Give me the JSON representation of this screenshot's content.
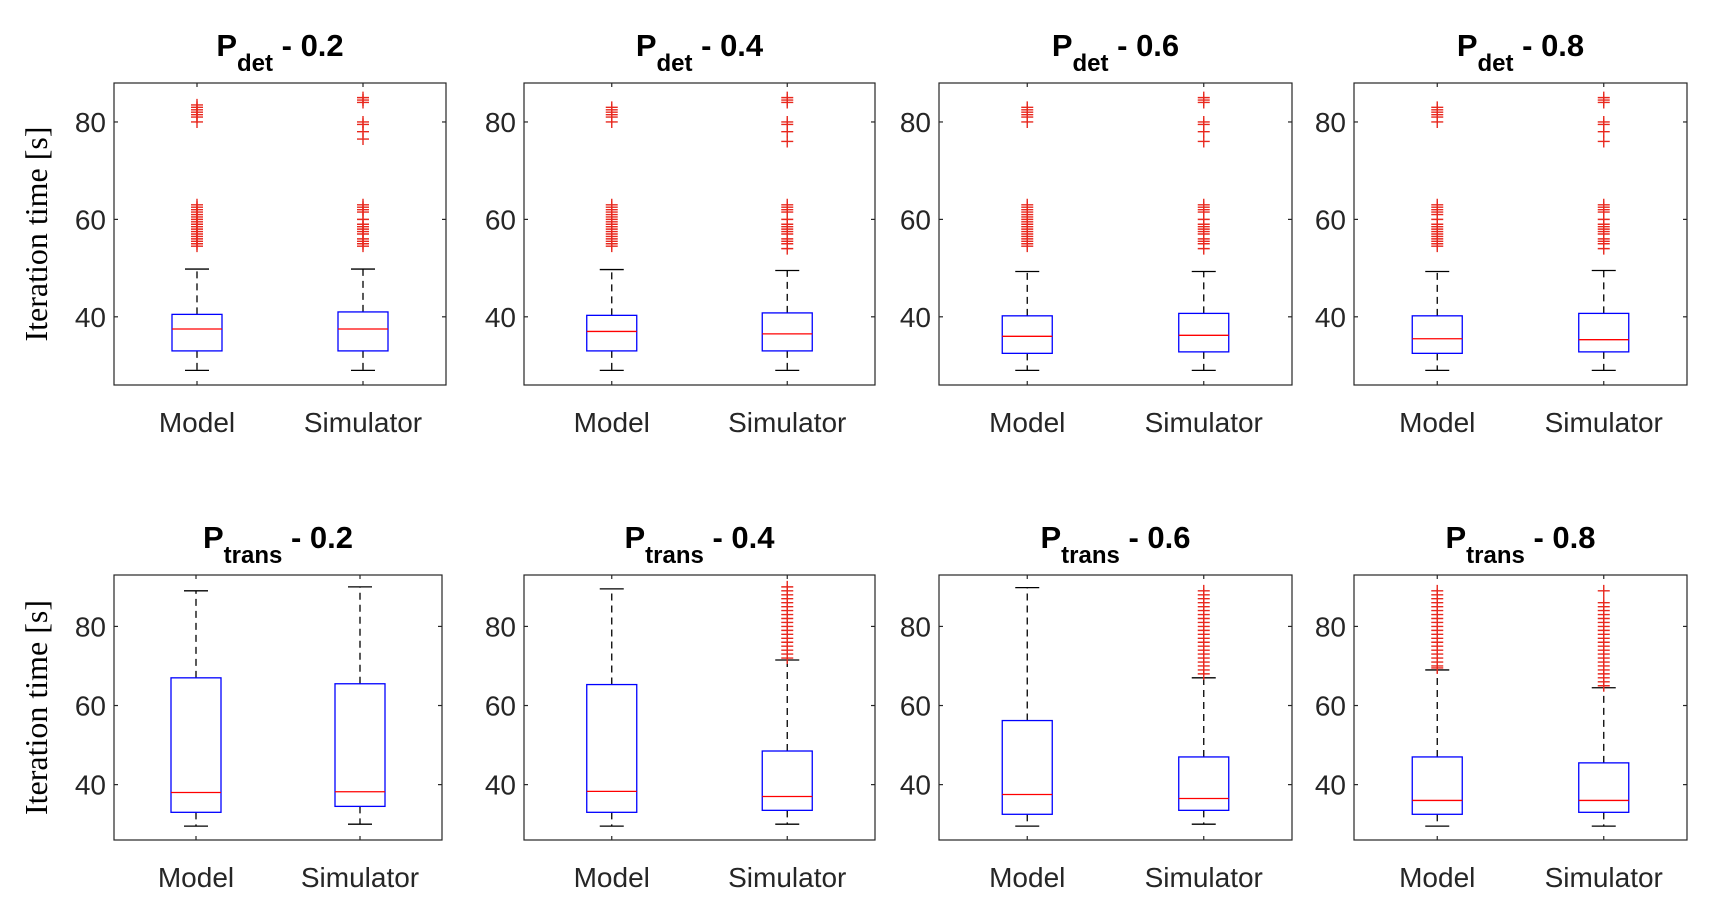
{
  "colors": {
    "box": "#0000ff",
    "median": "#ff0000",
    "outlier": "#e8281e",
    "whisker": "#000000",
    "axis": "#262626"
  },
  "chart_data": [
    {
      "type": "box",
      "title": {
        "base": "P",
        "sub": "det",
        "suffix": " - 0.2"
      },
      "ylabel": "Iteration time [s]",
      "ylim": [
        26,
        88
      ],
      "yticks": [
        40,
        60,
        80
      ],
      "categories": [
        "Model",
        "Simulator"
      ],
      "boxes": [
        {
          "name": "Model",
          "whisker_low": 29,
          "q1": 33,
          "median": 37.5,
          "q3": 40.5,
          "whisker_high": 49.8,
          "outliers": [
            54.5,
            55,
            55.5,
            56,
            56.5,
            57,
            57.5,
            58,
            58.5,
            59,
            59.5,
            60,
            60.5,
            61,
            61.5,
            62,
            62.5,
            63,
            80,
            81,
            81.5,
            82,
            82.5,
            83,
            83.5
          ]
        },
        {
          "name": "Simulator",
          "whisker_low": 29,
          "q1": 33,
          "median": 37.5,
          "q3": 41,
          "whisker_high": 49.8,
          "outliers": [
            54.5,
            55,
            55.5,
            56,
            57,
            57.5,
            58,
            58.5,
            59,
            60,
            61.5,
            62,
            62.5,
            63,
            76.5,
            78,
            79.5,
            80,
            84,
            84.5,
            85
          ]
        }
      ]
    },
    {
      "type": "box",
      "title": {
        "base": "P",
        "sub": "det",
        "suffix": " - 0.4"
      },
      "ylabel": "",
      "ylim": [
        26,
        88
      ],
      "yticks": [
        40,
        60,
        80
      ],
      "categories": [
        "Model",
        "Simulator"
      ],
      "boxes": [
        {
          "name": "Model",
          "whisker_low": 29,
          "q1": 33,
          "median": 37,
          "q3": 40.3,
          "whisker_high": 49.7,
          "outliers": [
            54.5,
            55,
            55.5,
            56,
            56.5,
            57,
            57.5,
            58,
            58.5,
            59,
            59.5,
            60,
            60.5,
            61,
            61.5,
            62,
            62.5,
            63,
            80,
            81,
            81.5,
            82,
            82.5,
            83
          ]
        },
        {
          "name": "Simulator",
          "whisker_low": 29,
          "q1": 33,
          "median": 36.5,
          "q3": 40.8,
          "whisker_high": 49.5,
          "outliers": [
            54,
            55,
            55.5,
            56,
            57,
            57.5,
            58,
            58.5,
            59,
            60,
            61.5,
            62,
            62.5,
            63,
            76,
            78,
            79.5,
            80,
            84,
            84.5,
            85
          ]
        }
      ]
    },
    {
      "type": "box",
      "title": {
        "base": "P",
        "sub": "det",
        "suffix": " - 0.6"
      },
      "ylabel": "",
      "ylim": [
        26,
        88
      ],
      "yticks": [
        40,
        60,
        80
      ],
      "categories": [
        "Model",
        "Simulator"
      ],
      "boxes": [
        {
          "name": "Model",
          "whisker_low": 29,
          "q1": 32.5,
          "median": 36,
          "q3": 40.2,
          "whisker_high": 49.3,
          "outliers": [
            54.5,
            55,
            55.5,
            56,
            56.5,
            57,
            57.5,
            58,
            58.5,
            59,
            59.5,
            60,
            60.5,
            61,
            61.5,
            62,
            62.5,
            63,
            80,
            81,
            81.5,
            82,
            82.5,
            83
          ]
        },
        {
          "name": "Simulator",
          "whisker_low": 29,
          "q1": 32.8,
          "median": 36.2,
          "q3": 40.7,
          "whisker_high": 49.3,
          "outliers": [
            54,
            55,
            55.5,
            56,
            57,
            57.5,
            58,
            58.5,
            59,
            60,
            61.5,
            62,
            62.5,
            63,
            76,
            78,
            79.5,
            80,
            84,
            84.5,
            85
          ]
        }
      ]
    },
    {
      "type": "box",
      "title": {
        "base": "P",
        "sub": "det",
        "suffix": " - 0.8"
      },
      "ylabel": "",
      "ylim": [
        26,
        88
      ],
      "yticks": [
        40,
        60,
        80
      ],
      "categories": [
        "Model",
        "Simulator"
      ],
      "boxes": [
        {
          "name": "Model",
          "whisker_low": 29,
          "q1": 32.5,
          "median": 35.5,
          "q3": 40.2,
          "whisker_high": 49.3,
          "outliers": [
            54.5,
            55,
            55.5,
            56,
            56.5,
            57,
            57.5,
            58,
            58.5,
            59,
            60,
            61,
            61.5,
            62,
            62.5,
            63,
            80,
            81,
            81.5,
            82,
            82.5,
            83
          ]
        },
        {
          "name": "Simulator",
          "whisker_low": 29,
          "q1": 32.8,
          "median": 35.3,
          "q3": 40.7,
          "whisker_high": 49.5,
          "outliers": [
            54,
            55,
            55.5,
            56,
            57,
            57.5,
            58,
            58.5,
            59,
            60,
            61.5,
            62,
            62.5,
            63,
            76,
            78,
            79.5,
            80,
            84,
            84.5,
            85
          ]
        }
      ]
    },
    {
      "type": "box",
      "title": {
        "base": "P",
        "sub": "trans",
        "suffix": " - 0.2"
      },
      "ylabel": "Iteration time [s]",
      "ylim": [
        26,
        93
      ],
      "yticks": [
        40,
        60,
        80
      ],
      "categories": [
        "Model",
        "Simulator"
      ],
      "boxes": [
        {
          "name": "Model",
          "whisker_low": 29.5,
          "q1": 33,
          "median": 38,
          "q3": 67,
          "whisker_high": 89,
          "outliers": []
        },
        {
          "name": "Simulator",
          "whisker_low": 30,
          "q1": 34.5,
          "median": 38.2,
          "q3": 65.5,
          "whisker_high": 90,
          "outliers": []
        }
      ]
    },
    {
      "type": "box",
      "title": {
        "base": "P",
        "sub": "trans",
        "suffix": " - 0.4"
      },
      "ylabel": "",
      "ylim": [
        26,
        93
      ],
      "yticks": [
        40,
        60,
        80
      ],
      "categories": [
        "Model",
        "Simulator"
      ],
      "boxes": [
        {
          "name": "Model",
          "whisker_low": 29.5,
          "q1": 33,
          "median": 38.3,
          "q3": 65.3,
          "whisker_high": 89.5,
          "outliers": []
        },
        {
          "name": "Simulator",
          "whisker_low": 30,
          "q1": 33.5,
          "median": 37,
          "q3": 48.5,
          "whisker_high": 71.5,
          "outliers": [
            72,
            73,
            74,
            75,
            76,
            77,
            78,
            79,
            80,
            81,
            82,
            83,
            84,
            85,
            86,
            87,
            88,
            89,
            90
          ]
        }
      ]
    },
    {
      "type": "box",
      "title": {
        "base": "P",
        "sub": "trans",
        "suffix": " - 0.6"
      },
      "ylabel": "",
      "ylim": [
        26,
        93
      ],
      "yticks": [
        40,
        60,
        80
      ],
      "categories": [
        "Model",
        "Simulator"
      ],
      "boxes": [
        {
          "name": "Model",
          "whisker_low": 29.5,
          "q1": 32.5,
          "median": 37.5,
          "q3": 56.2,
          "whisker_high": 89.8,
          "outliers": []
        },
        {
          "name": "Simulator",
          "whisker_low": 30,
          "q1": 33.5,
          "median": 36.5,
          "q3": 47,
          "whisker_high": 67,
          "outliers": [
            68,
            69,
            70,
            71,
            72,
            73,
            74,
            75,
            76,
            77,
            78,
            79,
            80,
            81,
            82,
            83,
            84,
            85,
            86,
            87,
            88,
            89
          ]
        }
      ]
    },
    {
      "type": "box",
      "title": {
        "base": "P",
        "sub": "trans",
        "suffix": " - 0.8"
      },
      "ylabel": "",
      "ylim": [
        26,
        93
      ],
      "yticks": [
        40,
        60,
        80
      ],
      "categories": [
        "Model",
        "Simulator"
      ],
      "boxes": [
        {
          "name": "Model",
          "whisker_low": 29.5,
          "q1": 32.5,
          "median": 36,
          "q3": 47,
          "whisker_high": 69,
          "outliers": [
            69.5,
            70,
            71,
            72,
            73,
            74,
            75,
            76,
            77,
            78,
            79,
            80,
            81,
            82,
            83,
            84,
            85,
            86,
            87,
            88,
            89
          ]
        },
        {
          "name": "Simulator",
          "whisker_low": 29.5,
          "q1": 33,
          "median": 36,
          "q3": 45.5,
          "whisker_high": 64.5,
          "outliers": [
            65,
            66,
            67,
            68,
            69,
            70,
            71,
            72,
            73,
            74,
            75,
            76,
            77,
            78,
            79,
            80,
            81,
            82,
            83,
            84,
            85,
            86,
            89
          ]
        }
      ]
    }
  ]
}
